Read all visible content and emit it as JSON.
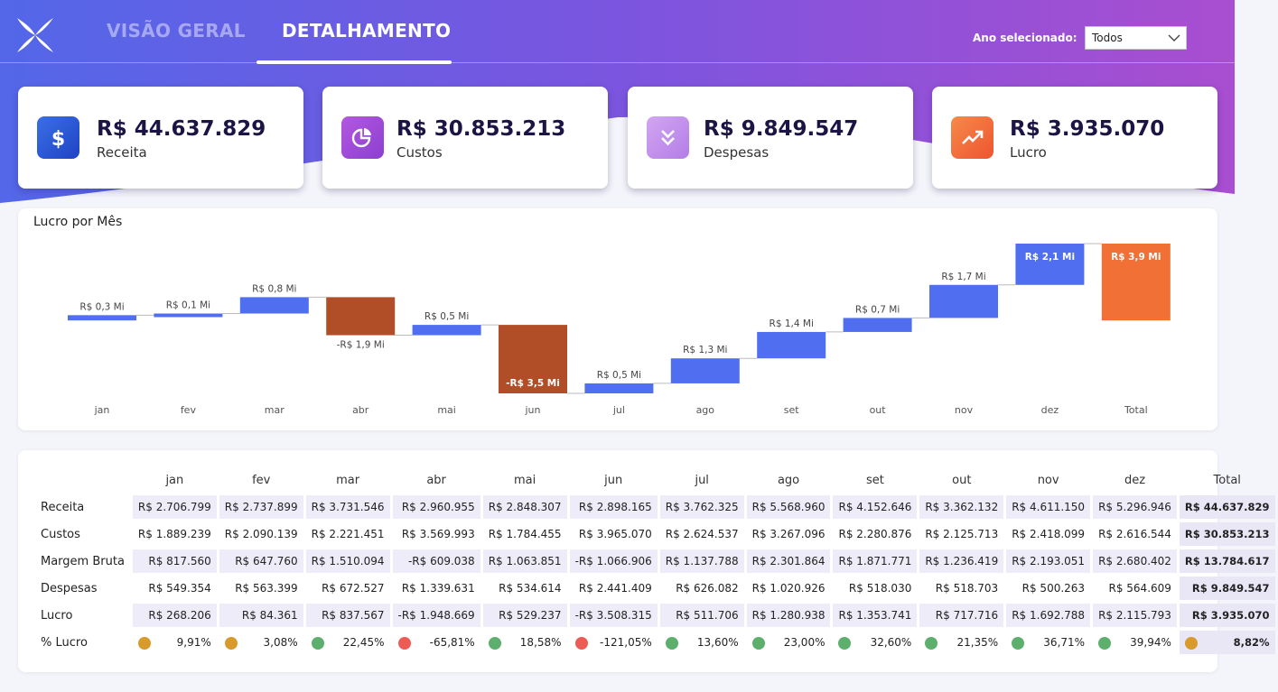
{
  "nav": {
    "tabs": [
      {
        "label": "VISÃO GERAL"
      },
      {
        "label": "DETALHAMENTO"
      }
    ]
  },
  "year_filter": {
    "label": "Ano selecionado:",
    "value": "Todos"
  },
  "kpis": [
    {
      "value": "R$ 44.637.829",
      "label": "Receita",
      "icon": "dollar-icon",
      "color": "#2f55d4"
    },
    {
      "value": "R$ 30.853.213",
      "label": "Custos",
      "icon": "pie-chart-icon",
      "color": "#a24bd7"
    },
    {
      "value": "R$ 9.849.547",
      "label": "Despesas",
      "icon": "double-chevron-down-icon",
      "color": "#c295ea"
    },
    {
      "value": "R$ 3.935.070",
      "label": "Lucro",
      "icon": "trending-up-icon",
      "color": "#f26b3a"
    }
  ],
  "chart_data": {
    "type": "waterfall",
    "title": "Lucro por Mês",
    "categories": [
      "jan",
      "fev",
      "mar",
      "abr",
      "mai",
      "jun",
      "jul",
      "ago",
      "set",
      "out",
      "nov",
      "dez",
      "Total"
    ],
    "values": [
      0.268206,
      0.084361,
      0.837567,
      -1.948669,
      0.529237,
      -3.508315,
      0.511706,
      1.280938,
      1.353741,
      0.717716,
      1.692788,
      2.115793,
      3.93507
    ],
    "labels": [
      "R$ 0,3 Mi",
      "R$ 0,1 Mi",
      "R$ 0,8 Mi",
      "-R$ 1,9 Mi",
      "R$ 0,5 Mi",
      "-R$ 3,5 Mi",
      "R$ 0,5 Mi",
      "R$ 1,3 Mi",
      "R$ 1,4 Mi",
      "R$ 0,7 Mi",
      "R$ 1,7 Mi",
      "R$ 2,1 Mi",
      "R$ 3,9 Mi"
    ],
    "colors": {
      "increase": "#4f6ef0",
      "decrease": "#b24e27",
      "total": "#f07035"
    }
  },
  "matrix": {
    "columns": [
      "jan",
      "fev",
      "mar",
      "abr",
      "mai",
      "jun",
      "jul",
      "ago",
      "set",
      "out",
      "nov",
      "dez",
      "Total"
    ],
    "rows": [
      {
        "label": "Receita",
        "values": [
          "R$ 2.706.799",
          "R$ 2.737.899",
          "R$ 3.731.546",
          "R$ 2.960.955",
          "R$ 2.848.307",
          "R$ 2.898.165",
          "R$ 3.762.325",
          "R$ 5.568.960",
          "R$ 4.152.646",
          "R$ 3.362.132",
          "R$ 4.611.150",
          "R$ 5.296.946",
          "R$ 44.637.829"
        ]
      },
      {
        "label": "Custos",
        "values": [
          "R$ 1.889.239",
          "R$ 2.090.139",
          "R$ 2.221.451",
          "R$ 3.569.993",
          "R$ 1.784.455",
          "R$ 3.965.070",
          "R$ 2.624.537",
          "R$ 3.267.096",
          "R$ 2.280.876",
          "R$ 2.125.713",
          "R$ 2.418.099",
          "R$ 2.616.544",
          "R$ 30.853.213"
        ]
      },
      {
        "label": "Margem Bruta",
        "values": [
          "R$ 817.560",
          "R$ 647.760",
          "R$ 1.510.094",
          "-R$ 609.038",
          "R$ 1.063.851",
          "-R$ 1.066.906",
          "R$ 1.137.788",
          "R$ 2.301.864",
          "R$ 1.871.771",
          "R$ 1.236.419",
          "R$ 2.193.051",
          "R$ 2.680.402",
          "R$ 13.784.617"
        ]
      },
      {
        "label": "Despesas",
        "values": [
          "R$ 549.354",
          "R$ 563.399",
          "R$ 672.527",
          "R$ 1.339.631",
          "R$ 534.614",
          "R$ 2.441.409",
          "R$ 626.082",
          "R$ 1.020.926",
          "R$ 518.030",
          "R$ 518.703",
          "R$ 500.263",
          "R$ 564.609",
          "R$ 9.849.547"
        ]
      },
      {
        "label": "Lucro",
        "values": [
          "R$ 268.206",
          "R$ 84.361",
          "R$ 837.567",
          "-R$ 1.948.669",
          "R$ 529.237",
          "-R$ 3.508.315",
          "R$ 511.706",
          "R$ 1.280.938",
          "R$ 1.353.741",
          "R$ 717.716",
          "R$ 1.692.788",
          "R$ 2.115.793",
          "R$ 3.935.070"
        ]
      }
    ],
    "pct_row": {
      "label": "% Lucro",
      "values": [
        "9,91%",
        "3,08%",
        "22,45%",
        "-65,81%",
        "18,58%",
        "-121,05%",
        "13,60%",
        "23,00%",
        "32,60%",
        "21,35%",
        "36,71%",
        "39,94%",
        "8,82%"
      ],
      "status_colors": [
        "#d79a2b",
        "#d79a2b",
        "#5caf6c",
        "#ec5b54",
        "#5caf6c",
        "#ec5b54",
        "#5caf6c",
        "#5caf6c",
        "#5caf6c",
        "#5caf6c",
        "#5caf6c",
        "#5caf6c",
        "#d79a2b"
      ]
    }
  }
}
